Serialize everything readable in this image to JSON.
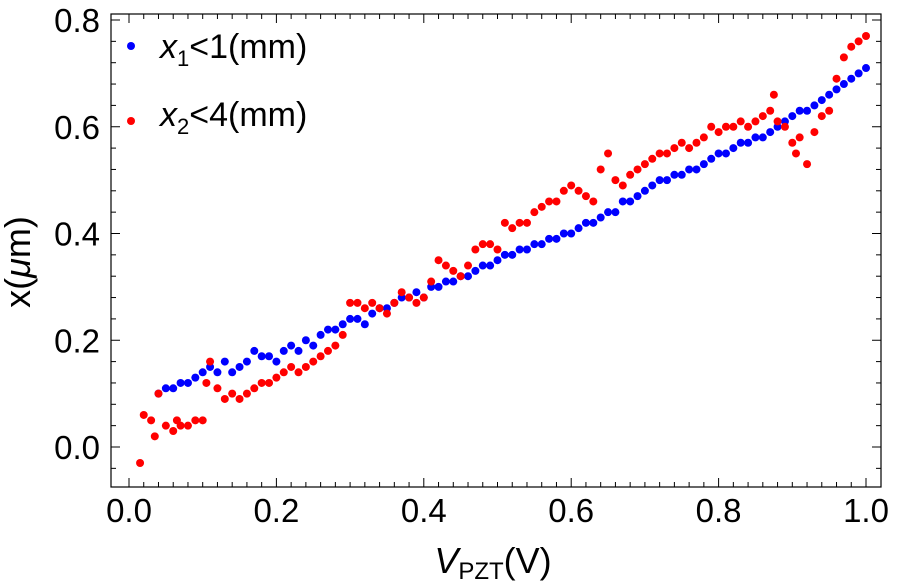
{
  "chart_data": {
    "type": "scatter",
    "xlabel": {
      "main": "V",
      "sub": "PZT",
      "unit": "(V)"
    },
    "ylabel": {
      "main": "x(",
      "greek": "μ",
      "unit": "m)"
    },
    "xlim": [
      0.0,
      1.0
    ],
    "ylim": [
      -0.07,
      0.8
    ],
    "x_ticks": [
      "0.0",
      "0.2",
      "0.4",
      "0.6",
      "0.8",
      "1.0"
    ],
    "y_ticks": [
      "0.0",
      "0.2",
      "0.4",
      "0.6",
      "0.8"
    ],
    "legend_position": "top-left",
    "series": [
      {
        "name": "x1<1(mm)",
        "legend": {
          "var": "x",
          "sub": "1",
          "rest": "<1(mm)"
        },
        "color": "#0000ff",
        "points": [
          [
            0.04,
            0.1
          ],
          [
            0.05,
            0.11
          ],
          [
            0.06,
            0.11
          ],
          [
            0.07,
            0.12
          ],
          [
            0.08,
            0.12
          ],
          [
            0.09,
            0.13
          ],
          [
            0.1,
            0.14
          ],
          [
            0.11,
            0.15
          ],
          [
            0.12,
            0.14
          ],
          [
            0.13,
            0.16
          ],
          [
            0.14,
            0.14
          ],
          [
            0.15,
            0.15
          ],
          [
            0.16,
            0.16
          ],
          [
            0.17,
            0.18
          ],
          [
            0.18,
            0.17
          ],
          [
            0.19,
            0.17
          ],
          [
            0.2,
            0.16
          ],
          [
            0.21,
            0.18
          ],
          [
            0.22,
            0.19
          ],
          [
            0.23,
            0.18
          ],
          [
            0.24,
            0.2
          ],
          [
            0.25,
            0.19
          ],
          [
            0.26,
            0.21
          ],
          [
            0.27,
            0.22
          ],
          [
            0.28,
            0.22
          ],
          [
            0.29,
            0.23
          ],
          [
            0.3,
            0.24
          ],
          [
            0.31,
            0.24
          ],
          [
            0.32,
            0.23
          ],
          [
            0.33,
            0.25
          ],
          [
            0.34,
            0.26
          ],
          [
            0.35,
            0.26
          ],
          [
            0.36,
            0.27
          ],
          [
            0.37,
            0.28
          ],
          [
            0.38,
            0.28
          ],
          [
            0.39,
            0.29
          ],
          [
            0.4,
            0.28
          ],
          [
            0.41,
            0.3
          ],
          [
            0.42,
            0.3
          ],
          [
            0.43,
            0.31
          ],
          [
            0.44,
            0.31
          ],
          [
            0.45,
            0.32
          ],
          [
            0.46,
            0.32
          ],
          [
            0.47,
            0.33
          ],
          [
            0.48,
            0.34
          ],
          [
            0.49,
            0.34
          ],
          [
            0.5,
            0.35
          ],
          [
            0.51,
            0.36
          ],
          [
            0.52,
            0.36
          ],
          [
            0.53,
            0.37
          ],
          [
            0.54,
            0.37
          ],
          [
            0.55,
            0.38
          ],
          [
            0.56,
            0.38
          ],
          [
            0.57,
            0.39
          ],
          [
            0.58,
            0.39
          ],
          [
            0.59,
            0.4
          ],
          [
            0.6,
            0.4
          ],
          [
            0.61,
            0.41
          ],
          [
            0.62,
            0.42
          ],
          [
            0.63,
            0.42
          ],
          [
            0.64,
            0.43
          ],
          [
            0.65,
            0.44
          ],
          [
            0.66,
            0.44
          ],
          [
            0.67,
            0.46
          ],
          [
            0.68,
            0.46
          ],
          [
            0.69,
            0.47
          ],
          [
            0.7,
            0.48
          ],
          [
            0.71,
            0.49
          ],
          [
            0.72,
            0.5
          ],
          [
            0.73,
            0.5
          ],
          [
            0.74,
            0.51
          ],
          [
            0.75,
            0.51
          ],
          [
            0.76,
            0.52
          ],
          [
            0.77,
            0.52
          ],
          [
            0.78,
            0.53
          ],
          [
            0.79,
            0.54
          ],
          [
            0.8,
            0.55
          ],
          [
            0.81,
            0.55
          ],
          [
            0.82,
            0.56
          ],
          [
            0.83,
            0.57
          ],
          [
            0.84,
            0.57
          ],
          [
            0.85,
            0.58
          ],
          [
            0.86,
            0.58
          ],
          [
            0.87,
            0.59
          ],
          [
            0.88,
            0.6
          ],
          [
            0.89,
            0.61
          ],
          [
            0.9,
            0.62
          ],
          [
            0.91,
            0.63
          ],
          [
            0.92,
            0.63
          ],
          [
            0.93,
            0.64
          ],
          [
            0.94,
            0.65
          ],
          [
            0.95,
            0.66
          ],
          [
            0.96,
            0.67
          ],
          [
            0.97,
            0.68
          ],
          [
            0.98,
            0.69
          ],
          [
            0.99,
            0.7
          ],
          [
            1.0,
            0.71
          ]
        ]
      },
      {
        "name": "x2<4(mm)",
        "legend": {
          "var": "x",
          "sub": "2",
          "rest": "<4(mm)"
        },
        "color": "#ff0000",
        "points": [
          [
            0.015,
            -0.03
          ],
          [
            0.02,
            0.06
          ],
          [
            0.03,
            0.05
          ],
          [
            0.035,
            0.02
          ],
          [
            0.04,
            0.1
          ],
          [
            0.05,
            0.04
          ],
          [
            0.06,
            0.03
          ],
          [
            0.065,
            0.05
          ],
          [
            0.07,
            0.04
          ],
          [
            0.08,
            0.04
          ],
          [
            0.09,
            0.05
          ],
          [
            0.1,
            0.05
          ],
          [
            0.105,
            0.12
          ],
          [
            0.11,
            0.16
          ],
          [
            0.12,
            0.11
          ],
          [
            0.13,
            0.09
          ],
          [
            0.14,
            0.1
          ],
          [
            0.15,
            0.09
          ],
          [
            0.16,
            0.1
          ],
          [
            0.17,
            0.11
          ],
          [
            0.18,
            0.12
          ],
          [
            0.19,
            0.12
          ],
          [
            0.2,
            0.13
          ],
          [
            0.21,
            0.14
          ],
          [
            0.22,
            0.15
          ],
          [
            0.23,
            0.14
          ],
          [
            0.24,
            0.15
          ],
          [
            0.25,
            0.16
          ],
          [
            0.26,
            0.17
          ],
          [
            0.27,
            0.18
          ],
          [
            0.28,
            0.19
          ],
          [
            0.29,
            0.21
          ],
          [
            0.3,
            0.27
          ],
          [
            0.31,
            0.27
          ],
          [
            0.32,
            0.26
          ],
          [
            0.33,
            0.27
          ],
          [
            0.34,
            0.26
          ],
          [
            0.35,
            0.25
          ],
          [
            0.36,
            0.27
          ],
          [
            0.37,
            0.29
          ],
          [
            0.38,
            0.28
          ],
          [
            0.39,
            0.27
          ],
          [
            0.4,
            0.28
          ],
          [
            0.41,
            0.31
          ],
          [
            0.42,
            0.35
          ],
          [
            0.43,
            0.34
          ],
          [
            0.44,
            0.33
          ],
          [
            0.45,
            0.32
          ],
          [
            0.46,
            0.34
          ],
          [
            0.47,
            0.37
          ],
          [
            0.48,
            0.38
          ],
          [
            0.49,
            0.38
          ],
          [
            0.5,
            0.37
          ],
          [
            0.51,
            0.42
          ],
          [
            0.52,
            0.41
          ],
          [
            0.53,
            0.42
          ],
          [
            0.54,
            0.42
          ],
          [
            0.55,
            0.44
          ],
          [
            0.56,
            0.45
          ],
          [
            0.57,
            0.46
          ],
          [
            0.58,
            0.46
          ],
          [
            0.59,
            0.48
          ],
          [
            0.6,
            0.49
          ],
          [
            0.61,
            0.48
          ],
          [
            0.62,
            0.47
          ],
          [
            0.63,
            0.46
          ],
          [
            0.64,
            0.52
          ],
          [
            0.65,
            0.55
          ],
          [
            0.66,
            0.5
          ],
          [
            0.67,
            0.49
          ],
          [
            0.68,
            0.51
          ],
          [
            0.69,
            0.52
          ],
          [
            0.7,
            0.53
          ],
          [
            0.71,
            0.54
          ],
          [
            0.72,
            0.55
          ],
          [
            0.73,
            0.55
          ],
          [
            0.74,
            0.56
          ],
          [
            0.75,
            0.57
          ],
          [
            0.76,
            0.56
          ],
          [
            0.77,
            0.57
          ],
          [
            0.78,
            0.58
          ],
          [
            0.79,
            0.6
          ],
          [
            0.8,
            0.59
          ],
          [
            0.81,
            0.6
          ],
          [
            0.82,
            0.6
          ],
          [
            0.83,
            0.61
          ],
          [
            0.84,
            0.6
          ],
          [
            0.85,
            0.61
          ],
          [
            0.86,
            0.62
          ],
          [
            0.87,
            0.63
          ],
          [
            0.875,
            0.66
          ],
          [
            0.88,
            0.61
          ],
          [
            0.89,
            0.6
          ],
          [
            0.9,
            0.57
          ],
          [
            0.905,
            0.55
          ],
          [
            0.91,
            0.58
          ],
          [
            0.92,
            0.53
          ],
          [
            0.93,
            0.59
          ],
          [
            0.94,
            0.62
          ],
          [
            0.95,
            0.63
          ],
          [
            0.96,
            0.69
          ],
          [
            0.97,
            0.73
          ],
          [
            0.98,
            0.75
          ],
          [
            0.99,
            0.76
          ],
          [
            1.0,
            0.77
          ]
        ]
      }
    ]
  }
}
